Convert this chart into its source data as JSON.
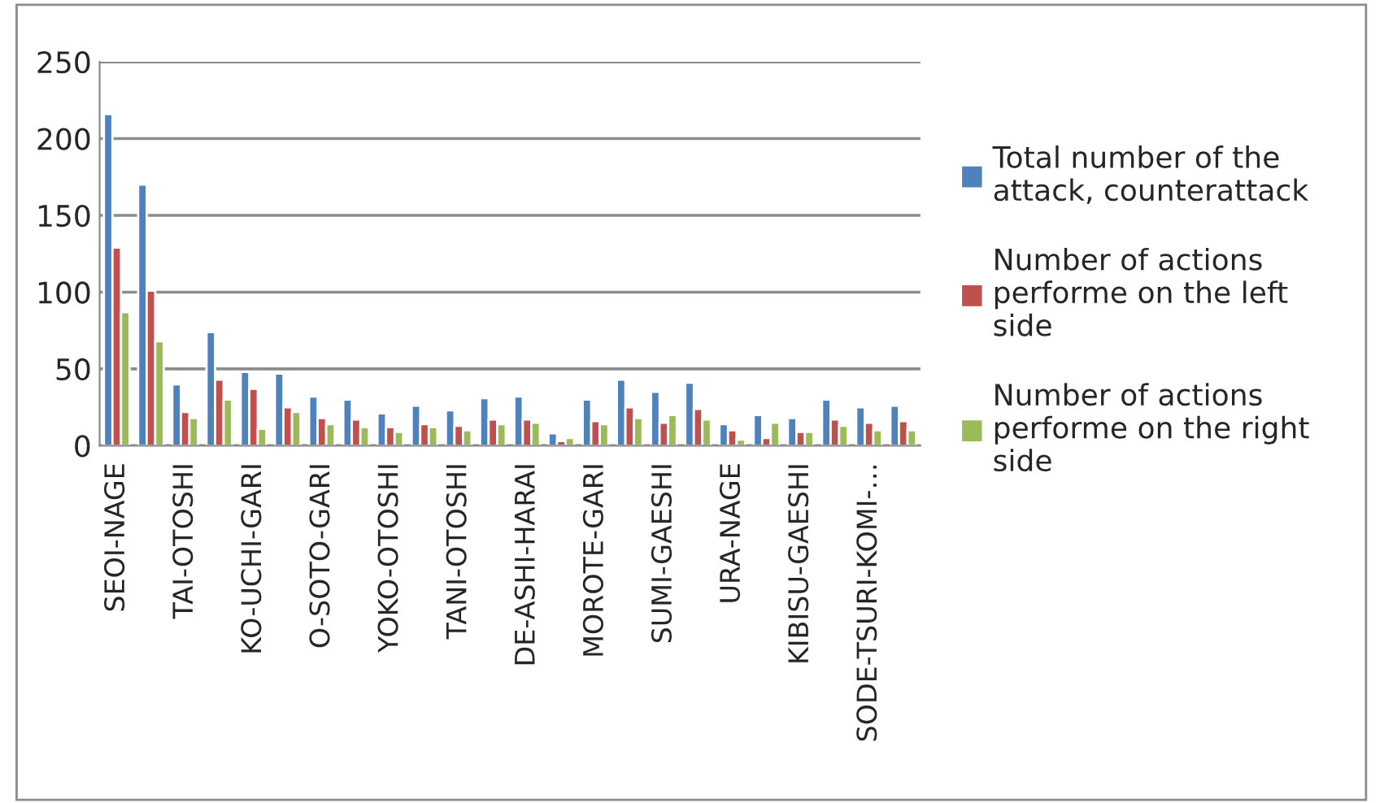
{
  "chart_data": {
    "type": "bar",
    "categories": [
      "SEOI-NAGE",
      null,
      "TAI-OTOSHI",
      null,
      "KO-UCHI-GARI",
      null,
      "O-SOTO-GARI",
      null,
      "YOKO-OTOSHI",
      null,
      "TANI-OTOSHI",
      null,
      "DE-ASHI-HARAI",
      null,
      "MOROTE-GARI",
      null,
      "SUMI-GAESHI",
      null,
      "URA-NAGE",
      null,
      "KIBISU-GAESHI",
      null,
      "SODE-TSURI-KOMI-…",
      null
    ],
    "series": [
      {
        "name": "Total number of the attack, counterattack",
        "color": "#4f81bd",
        "values": [
          216,
          170,
          40,
          74,
          48,
          47,
          32,
          30,
          21,
          26,
          23,
          31,
          32,
          8,
          30,
          43,
          35,
          41,
          14,
          20,
          18,
          30,
          25,
          26
        ]
      },
      {
        "name": "Number of actions performe on the left side",
        "color": "#c0504d",
        "values": [
          129,
          101,
          22,
          43,
          37,
          25,
          18,
          17,
          12,
          14,
          13,
          17,
          17,
          3,
          16,
          25,
          15,
          24,
          10,
          5,
          9,
          17,
          15,
          16
        ]
      },
      {
        "name": "Number of actions performe on the right side",
        "color": "#9bbb59",
        "values": [
          87,
          68,
          18,
          30,
          11,
          22,
          14,
          12,
          9,
          12,
          10,
          14,
          15,
          5,
          14,
          18,
          20,
          17,
          4,
          15,
          9,
          13,
          10,
          10
        ]
      }
    ],
    "ylim": [
      0,
      250
    ],
    "yticks": [
      0,
      50,
      100,
      150,
      200,
      250
    ],
    "grid": "y",
    "legend": "right"
  }
}
